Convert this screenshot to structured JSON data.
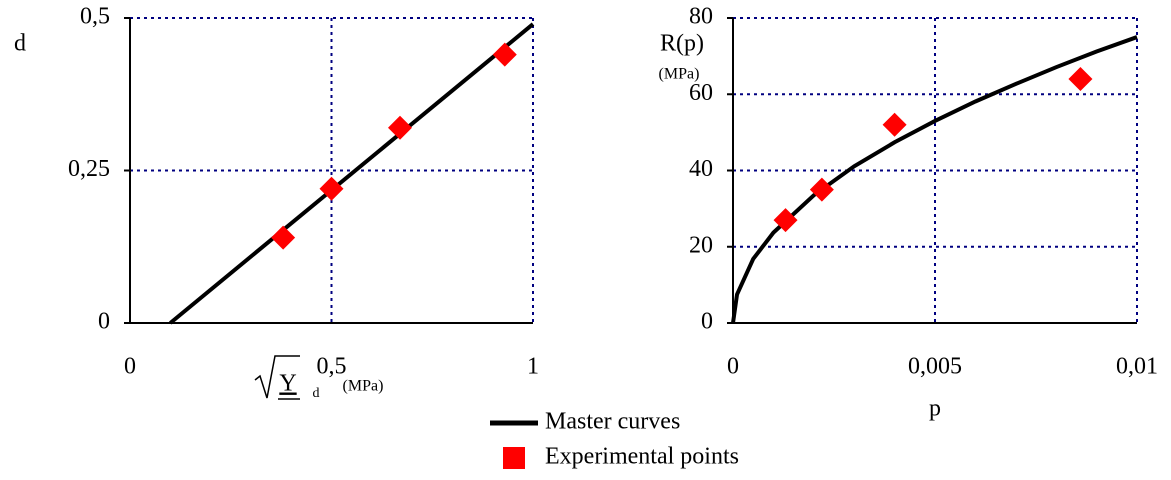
{
  "chart_data": [
    {
      "type": "line",
      "ylabel": "d",
      "xlabel": {
        "main": "Y",
        "subscript": "d",
        "unit": "(MPa)"
      },
      "xlim": [
        0,
        1
      ],
      "xticks": [
        0,
        {
          "value": 0.5,
          "label": "0,5"
        },
        1
      ],
      "ylim": [
        0,
        0.5
      ],
      "yticks": [
        0,
        {
          "value": 0.25,
          "label": "0,25"
        },
        {
          "value": 0.5,
          "label": "0,5"
        }
      ],
      "grid": true,
      "series": [
        {
          "name": "Master curves",
          "type": "line",
          "color": "#000000",
          "x": [
            0.1,
            1
          ],
          "values": [
            0,
            0.49
          ]
        },
        {
          "name": "Experimental points",
          "type": "scatter",
          "color": "#ff0000",
          "x": [
            0.38,
            0.5,
            0.67,
            0.93
          ],
          "values": [
            0.14,
            0.22,
            0.32,
            0.44
          ]
        }
      ]
    },
    {
      "type": "line",
      "ylabel": "R(p)",
      "yunit": "(MPa)",
      "xlabel": "p",
      "xlim": [
        0,
        0.01
      ],
      "xticks": [
        0,
        {
          "value": 0.005,
          "label": "0,005"
        },
        {
          "value": 0.01,
          "label": "0,01"
        }
      ],
      "ylim": [
        0,
        80
      ],
      "yticks": [
        0,
        20,
        40,
        60,
        80
      ],
      "grid": true,
      "series": [
        {
          "type": "line",
          "color": "#000000",
          "x": [
            0,
            0.0001,
            0.0005,
            0.001,
            0.002,
            0.003,
            0.004,
            0.005,
            0.006,
            0.007,
            0.008,
            0.009,
            0.01
          ],
          "values": [
            0,
            7.5,
            16.8,
            23.7,
            33.5,
            41.1,
            47.4,
            53,
            58.1,
            62.7,
            67.1,
            71.2,
            75
          ]
        },
        {
          "type": "scatter",
          "color": "#ff0000",
          "x": [
            0.0013,
            0.0022,
            0.004,
            0.0086
          ],
          "values": [
            27,
            35,
            52,
            64
          ]
        }
      ]
    }
  ]
}
